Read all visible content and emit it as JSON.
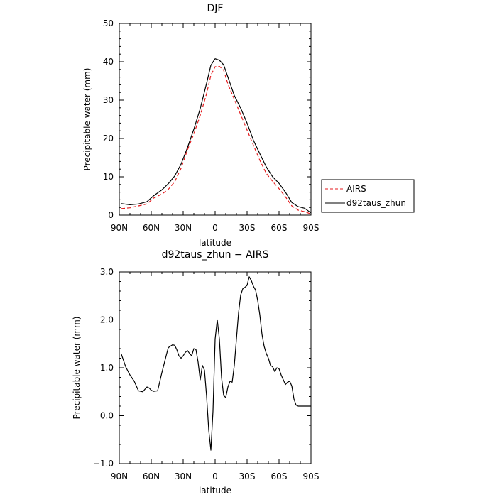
{
  "chart_data": [
    {
      "type": "line",
      "title": "DJF",
      "xlabel": "latitude",
      "ylabel": "Precipitable water (mm)",
      "x_tick_labels": [
        "90N",
        "60N",
        "30N",
        "0",
        "30S",
        "60S",
        "90S"
      ],
      "x_tick_values": [
        -90,
        -60,
        -30,
        0,
        30,
        60,
        90
      ],
      "xlim": [
        -90,
        90
      ],
      "ylim": [
        0,
        50
      ],
      "y_ticks": [
        0,
        10,
        20,
        30,
        40,
        50
      ],
      "y_tick_labels": [
        "0",
        "10",
        "20",
        "30",
        "40",
        "50"
      ],
      "legend_position": "right",
      "series": [
        {
          "name": "AIRS",
          "color": "#e41a1c",
          "dash": "dashed",
          "x": [
            -88,
            -80,
            -72,
            -64,
            -58,
            -50,
            -44,
            -38,
            -32,
            -26,
            -20,
            -14,
            -8,
            -4,
            0,
            4,
            8,
            12,
            18,
            24,
            30,
            36,
            42,
            48,
            54,
            60,
            66,
            72,
            78,
            84,
            90
          ],
          "y": [
            1.7,
            1.9,
            2.4,
            2.9,
            4.4,
            5.5,
            6.7,
            8.7,
            12.2,
            17.0,
            21.2,
            26.0,
            31.7,
            36.5,
            38.7,
            38.8,
            37.8,
            34.2,
            30.2,
            26.2,
            22.2,
            18.2,
            14.3,
            10.9,
            8.8,
            6.9,
            4.8,
            2.4,
            1.3,
            0.9,
            0.3
          ]
        },
        {
          "name": "d92taus_zhun",
          "color": "#000000",
          "dash": "solid",
          "x": [
            -88,
            -80,
            -72,
            -64,
            -58,
            -50,
            -44,
            -38,
            -32,
            -26,
            -20,
            -14,
            -8,
            -4,
            0,
            4,
            8,
            12,
            18,
            24,
            30,
            36,
            42,
            48,
            54,
            60,
            66,
            72,
            78,
            84,
            90
          ],
          "y": [
            3.0,
            2.7,
            2.9,
            3.5,
            5.0,
            6.6,
            8.2,
            10.2,
            13.3,
            17.6,
            22.4,
            27.8,
            34.4,
            39.1,
            40.8,
            40.4,
            39.2,
            36.0,
            31.2,
            27.9,
            24.0,
            19.5,
            16.0,
            12.6,
            10.0,
            8.3,
            6.0,
            3.3,
            2.2,
            1.8,
            0.6
          ]
        }
      ]
    },
    {
      "type": "line",
      "title": "d92taus_zhun − AIRS",
      "xlabel": "latitude",
      "ylabel": "Precipitable water (mm)",
      "x_tick_labels": [
        "90N",
        "60N",
        "30N",
        "0",
        "30S",
        "60S",
        "90S"
      ],
      "x_tick_values": [
        -90,
        -60,
        -30,
        0,
        30,
        60,
        90
      ],
      "xlim": [
        -90,
        90
      ],
      "ylim": [
        -1,
        3
      ],
      "y_ticks": [
        -1,
        0,
        1,
        2,
        3
      ],
      "y_tick_labels": [
        "−1.0",
        "0.0",
        "1.0",
        "2.0",
        "3.0"
      ],
      "series": [
        {
          "name": "d92taus_zhun − AIRS",
          "color": "#000000",
          "dash": "solid",
          "x": [
            -88,
            -84,
            -80,
            -76,
            -74,
            -72,
            -68,
            -66,
            -64,
            -62,
            -60,
            -58,
            -54,
            -50,
            -46,
            -44,
            -40,
            -38,
            -36,
            -34,
            -32,
            -30,
            -28,
            -26,
            -24,
            -22,
            -20,
            -18,
            -16,
            -14,
            -12,
            -10,
            -8,
            -6,
            -4,
            -2,
            0,
            2,
            4,
            6,
            8,
            10,
            12,
            14,
            16,
            18,
            20,
            22,
            24,
            26,
            28,
            30,
            32,
            34,
            36,
            38,
            40,
            42,
            44,
            46,
            48,
            50,
            52,
            54,
            56,
            58,
            60,
            62,
            64,
            66,
            68,
            70,
            72,
            74,
            76,
            78,
            80,
            82,
            84,
            86,
            88,
            90
          ],
          "y": [
            1.28,
            1.02,
            0.85,
            0.72,
            0.62,
            0.52,
            0.5,
            0.55,
            0.6,
            0.58,
            0.53,
            0.51,
            0.52,
            0.9,
            1.25,
            1.42,
            1.48,
            1.47,
            1.38,
            1.25,
            1.2,
            1.25,
            1.32,
            1.36,
            1.3,
            1.25,
            1.4,
            1.38,
            1.12,
            0.75,
            1.05,
            0.95,
            0.4,
            -0.3,
            -0.72,
            0.1,
            1.6,
            2.0,
            1.6,
            0.8,
            0.42,
            0.38,
            0.6,
            0.72,
            0.7,
            1.05,
            1.6,
            2.15,
            2.52,
            2.65,
            2.68,
            2.72,
            2.9,
            2.82,
            2.7,
            2.62,
            2.4,
            2.1,
            1.7,
            1.45,
            1.3,
            1.2,
            1.05,
            1.02,
            0.92,
            1.0,
            0.98,
            0.85,
            0.75,
            0.65,
            0.7,
            0.72,
            0.62,
            0.35,
            0.22,
            0.2,
            0.2,
            0.2,
            0.2,
            0.2,
            0.2,
            0.2
          ]
        }
      ]
    }
  ]
}
